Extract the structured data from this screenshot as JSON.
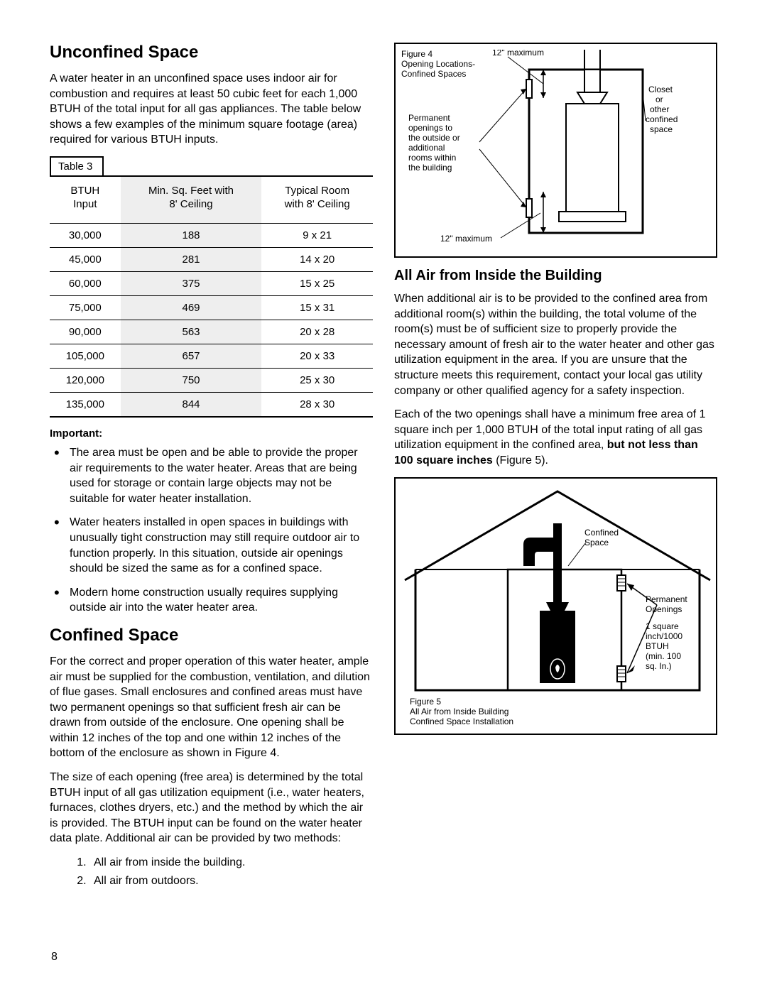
{
  "page_number": "8",
  "left": {
    "heading1": "Unconfined Space",
    "intro": "A water heater in an unconfined space uses indoor air for combustion and requires at least 50 cubic feet for each 1,000 BTUH of the total input for all gas appliances. The table below shows a few examples of the minimum square footage (area) required for various BTUH inputs.",
    "table_label": "Table 3",
    "table": {
      "columns": [
        "BTUH\nInput",
        "Min. Sq. Feet with\n8' Ceiling",
        "Typical Room\nwith 8' Ceiling"
      ],
      "rows": [
        [
          "30,000",
          "188",
          "9 x 21"
        ],
        [
          "45,000",
          "281",
          "14 x 20"
        ],
        [
          "60,000",
          "375",
          "15 x 25"
        ],
        [
          "75,000",
          "469",
          "15 x 31"
        ],
        [
          "90,000",
          "563",
          "20 x 28"
        ],
        [
          "105,000",
          "657",
          "20 x 33"
        ],
        [
          "120,000",
          "750",
          "25 x 30"
        ],
        [
          "135,000",
          "844",
          "28 x 30"
        ]
      ],
      "shaded_col_index": 1
    },
    "important_label": "Important:",
    "bullets": [
      "The area must be open and be able to provide the proper air requirements to the water heater. Areas that are being used for storage or contain large objects may not be suitable for water heater installation.",
      "Water heaters installed in open spaces in buildings with unusually tight construction may still require outdoor air to function properly. In this situation, outside air openings should be sized the same as for a confined space.",
      "Modern home construction usually requires supplying outside air into the water heater area."
    ],
    "heading2": "Confined Space",
    "confined_p1": "For the correct and proper operation of this water heater, ample air must be supplied for the combustion, ventilation, and dilution of flue gases. Small enclosures and confined areas must have two permanent openings so that sufficient fresh air can be drawn from outside of the enclosure. One opening shall be within 12 inches of the top and one within 12 inches of the bottom of the enclosure as shown in Figure 4.",
    "confined_p2": "The size of each opening (free area) is determined by the total BTUH input of all gas utilization equipment (i.e., water heaters, furnaces, clothes dryers, etc.) and the method by which the air is provided. The BTUH input can be found on the water heater data plate. Additional air can be provided by two methods:",
    "methods": [
      "All air from inside the building.",
      "All air from outdoors."
    ]
  },
  "right": {
    "fig4": {
      "title_l1": "Figure 4",
      "title_l2": "Opening Locations-",
      "title_l3": "Confined Spaces",
      "label_top": "12\" maximum",
      "label_closet_l1": "Closet",
      "label_closet_l2": "or",
      "label_closet_l3": "other",
      "label_closet_l4": "confined",
      "label_closet_l5": "space",
      "label_perm_l1": "Permanent",
      "label_perm_l2": "openings to",
      "label_perm_l3": "the outside or",
      "label_perm_l4": "additional",
      "label_perm_l5": "rooms within",
      "label_perm_l6": "the building",
      "label_bottom": "12\" maximum"
    },
    "heading3": "All Air from Inside the Building",
    "air_p1": "When additional air is to be provided to the confined area from additional room(s) within the building, the total volume of the room(s) must be of sufficient size to properly provide the necessary amount of fresh air to the water heater and other gas utilization equipment in the area. If you are unsure that the structure meets this requirement, contact your local gas utility company or other qualified agency for a safety inspection.",
    "air_p2_a": "Each of the two openings shall have a minimum free area of 1 square inch per 1,000 BTUH of the total input rating of all gas utilization equipment in the confined area, ",
    "air_p2_b": "but not less than 100 square inches",
    "air_p2_c": " (Figure 5).",
    "fig5": {
      "label_conf_l1": "Confined",
      "label_conf_l2": "Space",
      "label_perm_l1": "Permanent",
      "label_perm_l2": "Openings",
      "label_spec_l1": "1 square",
      "label_spec_l2": "inch/1000",
      "label_spec_l3": "BTUH",
      "label_spec_l4": "(min. 100",
      "label_spec_l5": "sq. In.)",
      "caption_l1": "Figure 5",
      "caption_l2": "All Air from Inside Building",
      "caption_l3": "Confined Space Installation"
    }
  }
}
